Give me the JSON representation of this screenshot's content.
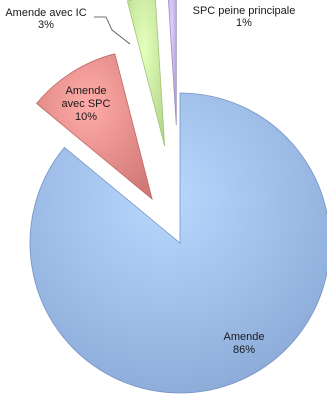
{
  "chart_data": {
    "type": "pie",
    "exploded": true,
    "legend": "none",
    "slices": [
      {
        "label_lines": [
          "Amende",
          "86%"
        ],
        "category": "Amende",
        "percent": 86,
        "color": "#9dbcea"
      },
      {
        "label_lines": [
          "Amende",
          "avec SPC",
          "10%"
        ],
        "category": "Amende avec SPC",
        "percent": 10,
        "color": "#e68f8c"
      },
      {
        "label_lines": [
          "Amende avec IC",
          "3%"
        ],
        "category": "Amende avec IC",
        "percent": 3,
        "color": "#c9eda0"
      },
      {
        "label_lines": [
          "SPC peine principale",
          "1%"
        ],
        "category": "SPC peine principale",
        "percent": 1,
        "color": "#c6b4ea"
      }
    ]
  }
}
